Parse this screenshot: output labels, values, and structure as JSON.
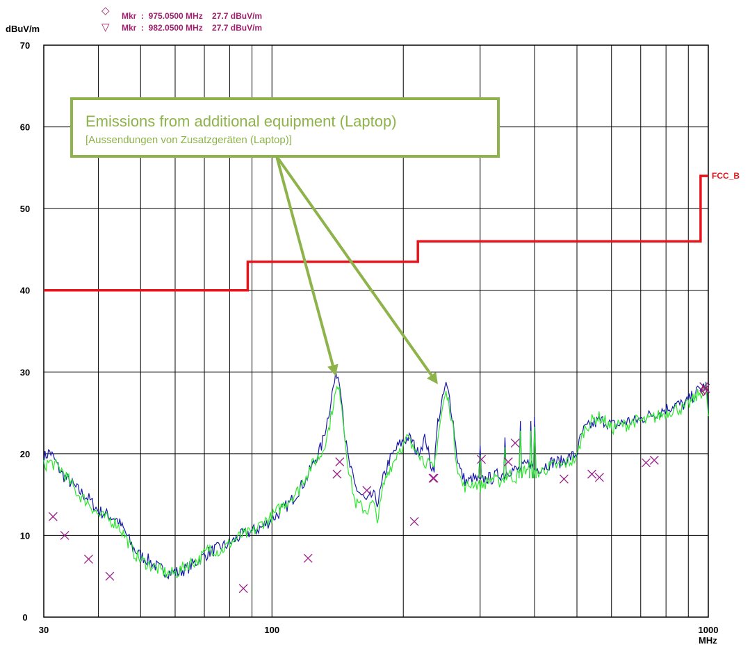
{
  "chart_data": {
    "type": "line",
    "ylabel": "dBuV/m",
    "xunit": "MHz",
    "xscale": "log",
    "xlim": [
      30,
      1000
    ],
    "ylim": [
      0,
      70
    ],
    "x_ticks": [
      30,
      100,
      1000
    ],
    "x_tick_labels": [
      "30",
      "100",
      "1000"
    ],
    "y_ticks": [
      0,
      10,
      20,
      30,
      40,
      50,
      60,
      70
    ],
    "grid": true,
    "markers": [
      {
        "symbol": "◇",
        "text": "Mkr  :  975.0500 MHz    27.7 dBuV/m",
        "freq": 975.05,
        "level": 27.7
      },
      {
        "symbol": "▽",
        "text": "Mkr  :  982.0500 MHz    27.7 dBuV/m",
        "freq": 982.05,
        "level": 27.7
      }
    ],
    "limit": {
      "name": "FCC_B",
      "color": "#e8141c",
      "steps": [
        [
          30,
          40
        ],
        [
          88,
          40
        ],
        [
          88,
          43.5
        ],
        [
          216,
          43.5
        ],
        [
          216,
          46
        ],
        [
          960,
          46
        ],
        [
          960,
          54
        ],
        [
          1000,
          54
        ]
      ]
    },
    "series": [
      {
        "color": "#1a1aa8",
        "points": [
          [
            30,
            19.5
          ],
          [
            31,
            20.3
          ],
          [
            33,
            17.5
          ],
          [
            36,
            15.5
          ],
          [
            38,
            14.5
          ],
          [
            40,
            13
          ],
          [
            42,
            12.5
          ],
          [
            44,
            12
          ],
          [
            46,
            10.5
          ],
          [
            48,
            8.5
          ],
          [
            50,
            7.5
          ],
          [
            52,
            7
          ],
          [
            55,
            6
          ],
          [
            58,
            5.5
          ],
          [
            61,
            5.5
          ],
          [
            64,
            6
          ],
          [
            68,
            7
          ],
          [
            72,
            8
          ],
          [
            76,
            8.5
          ],
          [
            80,
            9
          ],
          [
            85,
            10
          ],
          [
            90,
            10.5
          ],
          [
            95,
            11
          ],
          [
            100,
            12
          ],
          [
            105,
            13
          ],
          [
            110,
            14
          ],
          [
            115,
            15.5
          ],
          [
            120,
            17
          ],
          [
            125,
            19
          ],
          [
            130,
            21
          ],
          [
            135,
            25
          ],
          [
            138,
            28
          ],
          [
            141,
            30
          ],
          [
            144,
            28
          ],
          [
            147,
            22
          ],
          [
            150,
            19
          ],
          [
            155,
            16
          ],
          [
            160,
            15
          ],
          [
            165,
            14
          ],
          [
            170,
            15
          ],
          [
            175,
            14
          ],
          [
            180,
            17
          ],
          [
            185,
            19
          ],
          [
            190,
            20
          ],
          [
            195,
            21
          ],
          [
            200,
            21.5
          ],
          [
            205,
            22
          ],
          [
            210,
            21.5
          ],
          [
            215,
            20
          ],
          [
            220,
            21
          ],
          [
            225,
            22
          ],
          [
            230,
            19
          ],
          [
            235,
            18
          ],
          [
            240,
            24
          ],
          [
            245,
            26
          ],
          [
            250,
            28.5
          ],
          [
            255,
            27
          ],
          [
            260,
            24
          ],
          [
            265,
            20
          ],
          [
            270,
            18
          ],
          [
            275,
            17
          ],
          [
            280,
            16.5
          ],
          [
            290,
            17
          ],
          [
            300,
            16.5
          ],
          [
            310,
            17
          ],
          [
            320,
            17
          ],
          [
            330,
            17.5
          ],
          [
            340,
            17.5
          ],
          [
            350,
            18
          ],
          [
            360,
            18
          ],
          [
            370,
            18
          ],
          [
            380,
            18.5
          ],
          [
            390,
            19
          ],
          [
            400,
            18
          ],
          [
            420,
            18.5
          ],
          [
            440,
            19
          ],
          [
            460,
            19
          ],
          [
            480,
            19.5
          ],
          [
            500,
            20
          ],
          [
            510,
            22
          ],
          [
            520,
            23
          ],
          [
            540,
            23.5
          ],
          [
            560,
            24
          ],
          [
            580,
            24
          ],
          [
            600,
            23.5
          ],
          [
            620,
            23.5
          ],
          [
            650,
            24
          ],
          [
            680,
            24
          ],
          [
            720,
            24.5
          ],
          [
            760,
            25
          ],
          [
            800,
            25.5
          ],
          [
            840,
            26
          ],
          [
            880,
            26
          ],
          [
            920,
            27
          ],
          [
            960,
            28
          ],
          [
            990,
            28.3
          ],
          [
            1000,
            25
          ]
        ]
      },
      {
        "color": "#2ee82e",
        "points": [
          [
            30,
            18.5
          ],
          [
            31,
            19
          ],
          [
            33,
            18
          ],
          [
            36,
            15
          ],
          [
            38,
            14
          ],
          [
            40,
            12.5
          ],
          [
            42,
            12
          ],
          [
            44,
            11.5
          ],
          [
            46,
            10
          ],
          [
            48,
            8
          ],
          [
            50,
            7
          ],
          [
            52,
            6.5
          ],
          [
            55,
            5.8
          ],
          [
            58,
            5.3
          ],
          [
            61,
            5.5
          ],
          [
            64,
            6.5
          ],
          [
            68,
            7
          ],
          [
            72,
            8.5
          ],
          [
            76,
            8
          ],
          [
            80,
            9
          ],
          [
            85,
            10
          ],
          [
            90,
            10.3
          ],
          [
            95,
            11.5
          ],
          [
            100,
            12.3
          ],
          [
            105,
            13.5
          ],
          [
            110,
            14.5
          ],
          [
            115,
            15.5
          ],
          [
            120,
            17.5
          ],
          [
            125,
            19
          ],
          [
            130,
            20
          ],
          [
            135,
            23
          ],
          [
            138,
            26
          ],
          [
            141,
            28
          ],
          [
            144,
            27
          ],
          [
            147,
            22
          ],
          [
            150,
            18
          ],
          [
            155,
            14
          ],
          [
            160,
            13.5
          ],
          [
            165,
            13
          ],
          [
            170,
            14
          ],
          [
            175,
            12
          ],
          [
            180,
            16
          ],
          [
            185,
            18
          ],
          [
            190,
            19
          ],
          [
            195,
            20.5
          ],
          [
            200,
            21
          ],
          [
            205,
            22
          ],
          [
            210,
            20.5
          ],
          [
            215,
            21
          ],
          [
            220,
            19.5
          ],
          [
            225,
            19
          ],
          [
            230,
            18.5
          ],
          [
            235,
            18
          ],
          [
            240,
            22
          ],
          [
            245,
            25
          ],
          [
            250,
            27.5
          ],
          [
            255,
            26
          ],
          [
            260,
            23
          ],
          [
            265,
            19
          ],
          [
            270,
            17
          ],
          [
            275,
            16
          ],
          [
            280,
            16
          ],
          [
            290,
            16.5
          ],
          [
            300,
            16
          ],
          [
            310,
            16.5
          ],
          [
            320,
            17
          ],
          [
            330,
            16.5
          ],
          [
            340,
            17
          ],
          [
            350,
            17.5
          ],
          [
            360,
            17
          ],
          [
            370,
            17.5
          ],
          [
            380,
            18
          ],
          [
            390,
            18.5
          ],
          [
            400,
            17.5
          ],
          [
            420,
            18
          ],
          [
            440,
            18.5
          ],
          [
            460,
            18.5
          ],
          [
            480,
            19
          ],
          [
            500,
            19.5
          ],
          [
            510,
            21.5
          ],
          [
            520,
            23
          ],
          [
            540,
            24
          ],
          [
            560,
            24.5
          ],
          [
            580,
            24
          ],
          [
            600,
            23
          ],
          [
            620,
            23.5
          ],
          [
            650,
            23.5
          ],
          [
            680,
            24
          ],
          [
            720,
            24
          ],
          [
            760,
            24.5
          ],
          [
            800,
            25
          ],
          [
            840,
            25.5
          ],
          [
            880,
            25.5
          ],
          [
            920,
            26.5
          ],
          [
            960,
            27.5
          ],
          [
            990,
            28
          ],
          [
            1000,
            24.5
          ]
        ]
      }
    ],
    "spikes": [
      {
        "x": 300,
        "top": 21
      },
      {
        "x": 342,
        "top": 22
      },
      {
        "x": 371,
        "top": 24
      },
      {
        "x": 392,
        "top": 24
      },
      {
        "x": 400,
        "top": 24.5
      }
    ],
    "quasi_peak": {
      "color": "#9b1f8a",
      "points": [
        [
          31.5,
          12.3
        ],
        [
          33.5,
          10
        ],
        [
          38,
          7.1
        ],
        [
          42.5,
          5
        ],
        [
          86,
          3.5
        ],
        [
          121,
          7.2
        ],
        [
          141,
          17.5
        ],
        [
          143,
          19
        ],
        [
          165,
          15.5
        ],
        [
          212,
          11.7
        ],
        [
          234,
          17
        ],
        [
          235,
          17
        ],
        [
          302,
          19.3
        ],
        [
          348,
          19
        ],
        [
          361,
          21.3
        ],
        [
          467,
          16.9
        ],
        [
          541,
          17.5
        ],
        [
          563,
          17.1
        ],
        [
          720,
          18.9
        ],
        [
          752,
          19.2
        ],
        [
          977,
          28.2
        ],
        [
          985,
          28
        ]
      ]
    },
    "annotation": {
      "line1": "Emissions from additional equipment (Laptop)",
      "line2": "[Aussendungen von Zusatzgeräten (Laptop)]",
      "color": "#8db34a",
      "targets": [
        [
          140,
          29.5
        ],
        [
          240,
          28.5
        ]
      ]
    }
  }
}
